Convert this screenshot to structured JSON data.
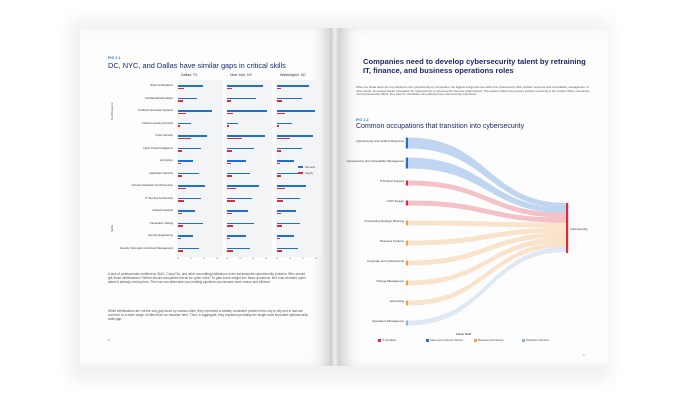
{
  "left_page": {
    "fig_label": "FIG 2.1",
    "heading": "DC, NYC, and Dallas have similar gaps in critical skills",
    "cities": [
      "Dallas, TX",
      "New York, NY",
      "Washington, DC"
    ],
    "group_labels": [
      "Certifications",
      "Skills"
    ],
    "rows": [
      {
        "label": "GIAC Certifications",
        "values": [
          [
            0.6,
            0.15
          ],
          [
            0.85,
            0.12
          ],
          [
            0.75,
            0.1
          ]
        ]
      },
      {
        "label": "Certified Ethical Hacker",
        "values": [
          [
            0.45,
            0.12
          ],
          [
            0.7,
            0.1
          ],
          [
            0.6,
            0.12
          ]
        ]
      },
      {
        "label": "Certified Information Systems",
        "values": [
          [
            0.8,
            0.2
          ],
          [
            0.95,
            0.15
          ],
          [
            0.9,
            0.18
          ]
        ]
      },
      {
        "label": "Cloud Computing Security",
        "values": [
          [
            0.3,
            0.05
          ],
          [
            0.25,
            0.04
          ],
          [
            0.35,
            0.05
          ]
        ]
      },
      {
        "label": "Cyber Security",
        "values": [
          [
            0.7,
            0.3
          ],
          [
            0.9,
            0.35
          ],
          [
            0.85,
            0.3
          ]
        ]
      },
      {
        "label": "Cyber Threat Intelligence",
        "values": [
          [
            0.55,
            0.1
          ],
          [
            0.65,
            0.12
          ],
          [
            0.6,
            0.1
          ]
        ]
      },
      {
        "label": "Encryption",
        "values": [
          [
            0.35,
            0.08
          ],
          [
            0.45,
            0.1
          ],
          [
            0.4,
            0.08
          ]
        ]
      },
      {
        "label": "Application Security",
        "values": [
          [
            0.5,
            0.1
          ],
          [
            0.55,
            0.12
          ],
          [
            0.5,
            0.1
          ]
        ]
      },
      {
        "label": "Intrusion Detection And Prevention",
        "values": [
          [
            0.65,
            0.2
          ],
          [
            0.75,
            0.22
          ],
          [
            0.7,
            0.18
          ]
        ]
      },
      {
        "label": "IT Security Architecture",
        "values": [
          [
            0.55,
            0.15
          ],
          [
            0.6,
            0.18
          ],
          [
            0.55,
            0.15
          ]
        ]
      },
      {
        "label": "Network Analysis",
        "values": [
          [
            0.4,
            0.1
          ],
          [
            0.5,
            0.12
          ],
          [
            0.45,
            0.1
          ]
        ]
      },
      {
        "label": "Penetration Testing",
        "values": [
          [
            0.6,
            0.12
          ],
          [
            0.65,
            0.15
          ],
          [
            0.55,
            0.12
          ]
        ]
      },
      {
        "label": "Security Engineering",
        "values": [
          [
            0.35,
            0.06
          ],
          [
            0.45,
            0.08
          ],
          [
            0.4,
            0.07
          ]
        ]
      },
      {
        "label": "Security Information And Event Management",
        "values": [
          [
            0.5,
            0.12
          ],
          [
            0.55,
            0.15
          ],
          [
            0.5,
            0.12
          ]
        ]
      }
    ],
    "axis_ticks": [
      "0k",
      "1k",
      "2k",
      "3k"
    ],
    "legend": [
      {
        "label": "Demand",
        "color": "#1f6fd1"
      },
      {
        "label": "Supply",
        "color": "#e02a3a"
      }
    ],
    "para1": "A lack of professionals certified by GIAC, CompTIA, and other accrediting institutions is the fundamental cybersecurity problem. Who should get these certifications? Where should companies recruit for cyber roles? To gain some insight into these questions, let's look at where cyber talent is already coming from. Then we can determine how existing pipelines can become more robust and efficient.",
    "para2": "While certifications are not the only gap faced by various cities, they represent a notably consistent problem from city to city and in fact are common to a wider range of cities than we visualize here. Thus, in aggregate, they represent probably the single most important cybersecurity skills gap.",
    "page_number": "8"
  },
  "right_page": {
    "title": "Companies need to develop cybersecurity talent by retraining IT, finance, and business operations roles",
    "intro": "When we break down the top transitions into cybersecurity by occupation, the biggest subgroups are within the cybersecurity field: incident response and vulnerability management. In other words, the largest feeder occupation for cybersecurity is cybersecurity (See the graph below). This pattern reflects the primary problem occurring in the market: When companies need cybersecurity talent, they post for candidates who already have cybersecurity experience.",
    "fig_label": "FIG 2.2",
    "heading": "Common occupations that transition into cybersecurity",
    "sources": [
      {
        "label": "Cybersecurity and Incident Response",
        "field": 1
      },
      {
        "label": "Cybersecurity and Vulnerability Management",
        "field": 1
      },
      {
        "label": "IT Product Support",
        "field": 0
      },
      {
        "label": "UI/UX Design",
        "field": 0
      },
      {
        "label": "Forecasting Strategic Planning",
        "field": 2
      },
      {
        "label": "Business Systems",
        "field": 2
      },
      {
        "label": "Corporate and Cybersecurity",
        "field": 2
      },
      {
        "label": "Change Management",
        "field": 2
      },
      {
        "label": "Accounting",
        "field": 2
      },
      {
        "label": "Operations Management",
        "field": 3
      }
    ],
    "target": "Cybersecurity",
    "legend_title": "Career Field",
    "legend": [
      {
        "label": "IT and Math",
        "color": "#e02a3a"
      },
      {
        "label": "Sales and Customer Service",
        "color": "#1f6fd1"
      },
      {
        "label": "Business and Finance",
        "color": "#f0a24a"
      },
      {
        "label": "Production Services",
        "color": "#8fb4e0"
      }
    ],
    "field_colors": [
      "#e02a3a",
      "#1f6fd1",
      "#f0a24a",
      "#8fb4e0"
    ],
    "link_color": "#f1c1c4",
    "page_number": "9"
  }
}
